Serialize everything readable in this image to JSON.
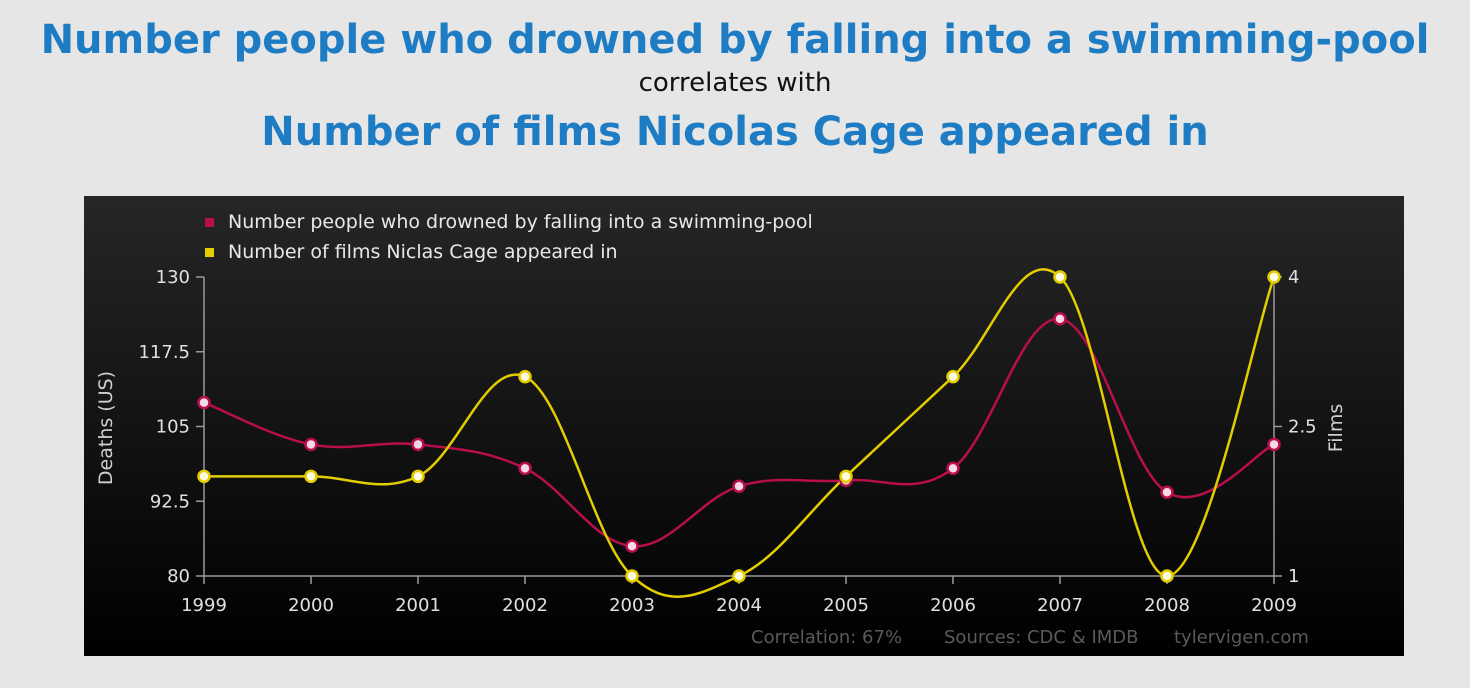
{
  "header": {
    "title_line1": "Number people who drowned by falling into a swimming-pool",
    "connector": "correlates with",
    "title_line2": "Number of films Nicolas Cage appeared in"
  },
  "chart_data": {
    "type": "line",
    "x": [
      1999,
      2000,
      2001,
      2002,
      2003,
      2004,
      2005,
      2006,
      2007,
      2008,
      2009
    ],
    "series": [
      {
        "name": "Number people who drowned by falling into a swimming-pool",
        "axis": "left",
        "color": "#b80f4c",
        "values": [
          109,
          102,
          102,
          98,
          85,
          95,
          96,
          98,
          123,
          94,
          102
        ]
      },
      {
        "name": "Number of films Niclas Cage appeared in",
        "axis": "right",
        "color": "#e3cc00",
        "values": [
          2,
          2,
          2,
          3,
          1,
          1,
          2,
          3,
          4,
          1,
          4
        ]
      }
    ],
    "ylabel_left": "Deaths (US)",
    "ylabel_right": "Films",
    "ylim_left": [
      80,
      130
    ],
    "yticks_left": [
      "130",
      "117.5",
      "105",
      "92.5",
      "80"
    ],
    "ylim_right": [
      1,
      4
    ],
    "yticks_right": [
      "4",
      "2.5",
      "1"
    ],
    "legend_position": "top-left",
    "grid": false,
    "footer": {
      "correlation": "Correlation: 67%",
      "sources": "Sources: CDC & IMDB",
      "site": "tylervigen.com"
    }
  }
}
